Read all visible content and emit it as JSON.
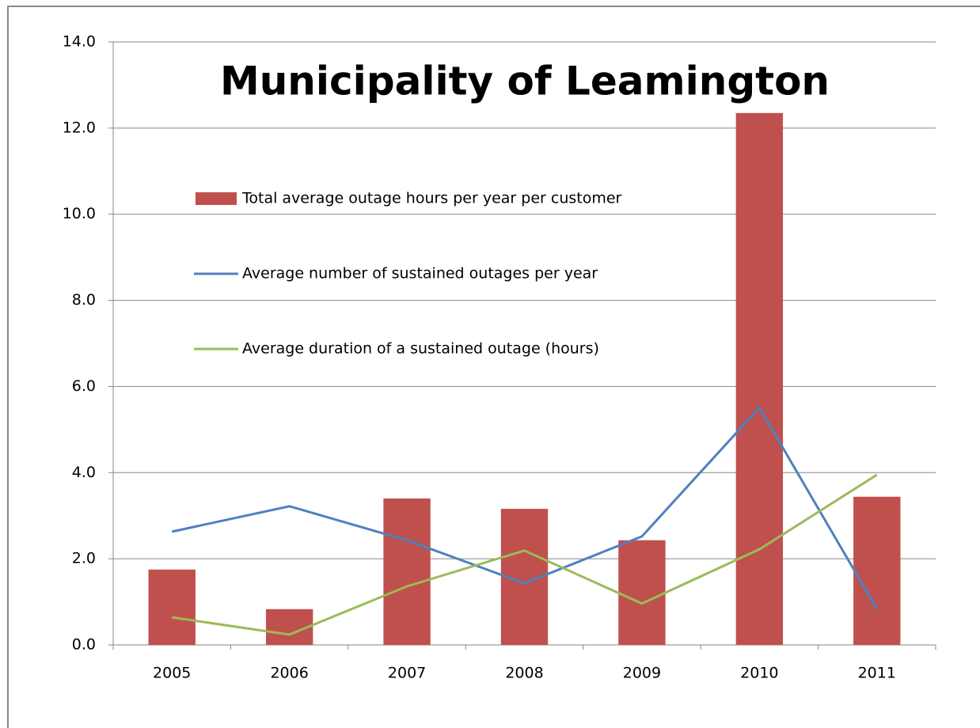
{
  "chart_data": {
    "type": "bar",
    "title": "Municipality of Leamington",
    "categories": [
      "2005",
      "2006",
      "2007",
      "2008",
      "2009",
      "2010",
      "2011"
    ],
    "series": [
      {
        "name": "Total average outage hours per year per customer",
        "type": "bar",
        "color": "#c0504d",
        "values": [
          1.75,
          0.83,
          3.4,
          3.16,
          2.43,
          12.35,
          3.44
        ]
      },
      {
        "name": "Average number of sustained outages per year",
        "type": "line",
        "color": "#4f81bd",
        "values": [
          2.63,
          3.22,
          2.43,
          1.43,
          2.52,
          5.51,
          0.83
        ]
      },
      {
        "name": "Average duration of a sustained outage (hours)",
        "type": "line",
        "color": "#9bbb59",
        "values": [
          0.64,
          0.24,
          1.36,
          2.19,
          0.96,
          2.22,
          3.95
        ]
      }
    ],
    "ylim": [
      0,
      14
    ],
    "yticks": [
      {
        "value": 0,
        "label": "0.0"
      },
      {
        "value": 2,
        "label": "2.0"
      },
      {
        "value": 4,
        "label": "4.0"
      },
      {
        "value": 6,
        "label": "6.0"
      },
      {
        "value": 8,
        "label": "8.0"
      },
      {
        "value": 10,
        "label": "10.0"
      },
      {
        "value": 12,
        "label": "12.0"
      },
      {
        "value": 14,
        "label": "14.0"
      }
    ],
    "grid": true,
    "legend": "upper left"
  }
}
